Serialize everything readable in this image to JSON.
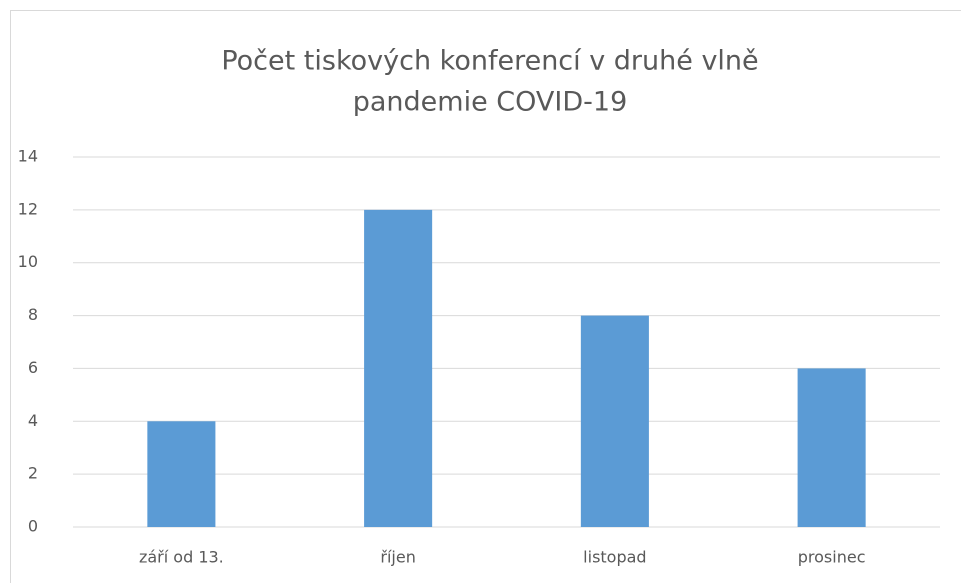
{
  "chart_data": {
    "type": "bar",
    "title": [
      "Počet tiskových konferencí v druhé vlně",
      "pandemie COVID-19"
    ],
    "categories": [
      "září od 13.",
      "říjen",
      "listopad",
      "prosinec"
    ],
    "values": [
      4,
      12,
      8,
      6
    ],
    "color": "#5b9bd5",
    "ylim": [
      0,
      14
    ],
    "yticks": [
      0,
      2,
      4,
      6,
      8,
      10,
      12,
      14
    ],
    "grid": true
  }
}
